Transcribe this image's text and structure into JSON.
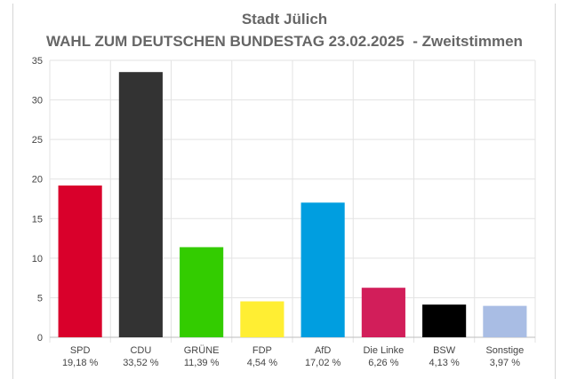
{
  "chart_data": {
    "type": "bar",
    "title": "Stadt Jülich",
    "subtitle": "WAHL ZUM DEUTSCHEN BUNDESTAG 23.02.2025  - Zweitstimmen",
    "xlabel": "",
    "ylabel": "",
    "ylim": [
      0,
      35
    ],
    "yticks": [
      0,
      5,
      10,
      15,
      20,
      25,
      30,
      35
    ],
    "grid": true,
    "legend": "none",
    "categories": [
      "SPD",
      "CDU",
      "GRÜNE",
      "FDP",
      "AfD",
      "Die Linke",
      "BSW",
      "Sonstige"
    ],
    "value_labels": [
      "19,18 %",
      "33,52 %",
      "11,39 %",
      "4,54 %",
      "17,02 %",
      "6,26 %",
      "4,13 %",
      "3,97 %"
    ],
    "values": [
      19.18,
      33.52,
      11.39,
      4.54,
      17.02,
      6.26,
      4.13,
      3.97
    ],
    "colors": [
      "#d9002b",
      "#333333",
      "#33cc00",
      "#ffee33",
      "#009ee0",
      "#d21e5a",
      "#000000",
      "#a9bde4"
    ]
  }
}
